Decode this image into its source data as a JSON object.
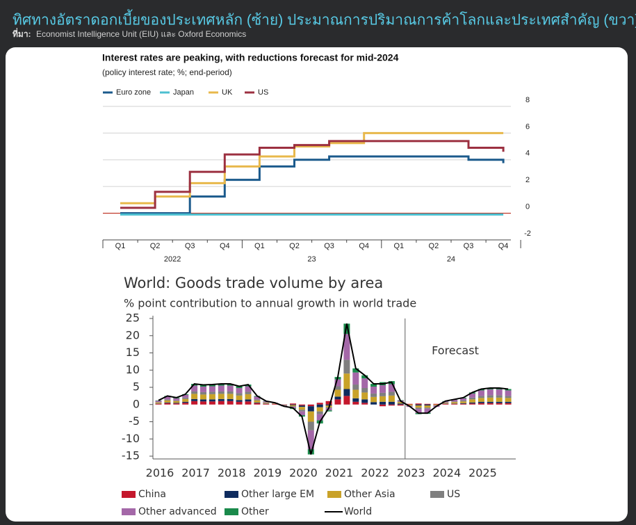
{
  "header": {
    "title": "ทิศทางอัตราดอกเบี้ยของประเทศหลัก (ซ้าย) ประมาณการปริมาณการค้าโลกและประเทศสำคัญ (ขวา)",
    "source_label": "ที่มา:",
    "source": "Economist Intelligence Unit (EIU) และ Oxford Economics"
  },
  "chart_data": [
    {
      "type": "step",
      "title": "Interest rates are peaking, with reductions forecast for mid-2024",
      "subtitle": "(policy interest rate; %; end-period)",
      "categories": [
        "Q1",
        "Q2",
        "Q3",
        "Q4",
        "Q1",
        "Q2",
        "Q3",
        "Q4",
        "Q1",
        "Q2",
        "Q3",
        "Q4"
      ],
      "groups": [
        "2022",
        "23",
        "24"
      ],
      "ylim": [
        -2,
        8
      ],
      "yticks": [
        8,
        6,
        4,
        2,
        0,
        -2
      ],
      "grid": true,
      "series": [
        {
          "name": "Euro zone",
          "color": "#1b5a8c",
          "values": [
            0,
            0,
            1.25,
            2.5,
            3.5,
            4.0,
            4.25,
            4.25,
            4.25,
            4.25,
            4.0,
            3.75
          ]
        },
        {
          "name": "Japan",
          "color": "#4dbfd0",
          "values": [
            -0.1,
            -0.1,
            -0.1,
            -0.1,
            -0.1,
            -0.1,
            -0.1,
            -0.1,
            -0.1,
            -0.1,
            -0.1,
            -0.1
          ]
        },
        {
          "name": "UK",
          "color": "#e8b84b",
          "values": [
            0.75,
            1.25,
            2.25,
            3.5,
            4.25,
            5.0,
            5.25,
            6.0,
            6.0,
            6.0,
            6.0,
            6.0
          ]
        },
        {
          "name": "US",
          "color": "#9c3040",
          "values": [
            0.4,
            1.6,
            3.1,
            4.4,
            4.9,
            5.1,
            5.4,
            5.4,
            5.4,
            5.4,
            4.9,
            4.6
          ]
        }
      ]
    },
    {
      "type": "stacked-bar",
      "title": "World: Goods trade volume by area",
      "subtitle": "% point contribution to annual growth in world trade",
      "categories": [
        "2016",
        null,
        null,
        null,
        "2017",
        null,
        null,
        null,
        "2018",
        null,
        null,
        null,
        "2019",
        null,
        null,
        null,
        "2020",
        null,
        null,
        null,
        "2021",
        null,
        null,
        null,
        "2022",
        null,
        null,
        null,
        "2023",
        null,
        null,
        null,
        "2024",
        null,
        null,
        null,
        "2025",
        null,
        null,
        null
      ],
      "ylim": [
        -15,
        25
      ],
      "yticks": [
        25,
        20,
        15,
        10,
        5,
        0,
        -5,
        -10,
        -15
      ],
      "annotations": [
        {
          "text": "Forecast"
        }
      ],
      "series": [
        {
          "name": "China",
          "color": "#c4172c",
          "values": [
            0.2,
            0.4,
            0.3,
            0.5,
            1.0,
            0.9,
            0.9,
            1.0,
            1.0,
            0.8,
            0.9,
            0.4,
            0.2,
            0.2,
            -0.1,
            0.3,
            -0.3,
            -0.5,
            0.5,
            1.0,
            1.5,
            2.5,
            0.8,
            0.5,
            0.0,
            -0.5,
            -0.3,
            -0.3,
            0.2,
            0.3,
            0.2,
            0.2,
            0.2,
            0.2,
            0.2,
            0.3,
            0.4,
            0.4,
            0.4,
            0.4
          ]
        },
        {
          "name": "Other large EM",
          "color": "#0e2b5e",
          "values": [
            0.1,
            0.2,
            0.2,
            0.3,
            0.6,
            0.6,
            0.6,
            0.6,
            0.6,
            0.5,
            0.6,
            0.2,
            0.1,
            0.0,
            -0.1,
            -0.2,
            -0.4,
            -1.5,
            -0.8,
            -0.3,
            0.8,
            2.0,
            1.0,
            1.0,
            0.7,
            0.8,
            0.8,
            0.3,
            0.0,
            -0.3,
            -0.3,
            0.0,
            0.1,
            0.1,
            0.2,
            0.3,
            0.4,
            0.4,
            0.4,
            0.4
          ]
        },
        {
          "name": "Other Asia",
          "color": "#c9a229",
          "values": [
            0.3,
            0.6,
            0.5,
            0.8,
            1.5,
            1.4,
            1.5,
            1.5,
            1.5,
            1.3,
            1.5,
            0.6,
            0.2,
            0.1,
            -0.1,
            -0.3,
            -0.8,
            -3.0,
            -1.2,
            -0.5,
            2.0,
            4.5,
            2.5,
            2.0,
            1.5,
            1.6,
            1.8,
            0.4,
            -0.3,
            -0.6,
            -0.6,
            -0.2,
            0.2,
            0.4,
            0.5,
            0.9,
            1.1,
            1.2,
            1.2,
            1.1
          ]
        },
        {
          "name": "US",
          "color": "#7f7f7f",
          "values": [
            0.1,
            0.3,
            0.2,
            0.4,
            0.7,
            0.7,
            0.7,
            0.7,
            0.7,
            0.7,
            0.7,
            0.3,
            0.1,
            0.1,
            0.0,
            -0.2,
            -0.5,
            -2.5,
            -0.8,
            -0.3,
            1.0,
            4.0,
            1.5,
            1.3,
            1.0,
            1.0,
            1.1,
            0.2,
            -0.1,
            -0.4,
            -0.3,
            -0.1,
            0.1,
            0.2,
            0.3,
            0.5,
            0.6,
            0.7,
            0.7,
            0.6
          ]
        },
        {
          "name": "Other advanced",
          "color": "#a468a8",
          "values": [
            0.4,
            0.8,
            0.6,
            0.8,
            1.7,
            1.6,
            1.6,
            1.7,
            1.7,
            1.5,
            1.6,
            0.8,
            0.3,
            0.1,
            -0.2,
            -0.4,
            -1.1,
            -5.5,
            -1.8,
            -0.6,
            2.0,
            7.5,
            3.5,
            2.8,
            2.0,
            2.2,
            2.2,
            0.3,
            -0.3,
            -1.2,
            -1.2,
            -0.4,
            0.3,
            0.5,
            0.6,
            1.2,
            1.6,
            1.7,
            1.7,
            1.6
          ]
        },
        {
          "name": "Other",
          "color": "#1a8a4b",
          "values": [
            0.1,
            0.2,
            0.2,
            0.2,
            0.5,
            0.5,
            0.5,
            0.5,
            0.5,
            0.5,
            0.5,
            0.2,
            0.1,
            0.0,
            0.0,
            -0.2,
            -0.4,
            -1.5,
            -0.9,
            -0.3,
            0.7,
            3.0,
            1.2,
            0.9,
            0.8,
            0.9,
            0.9,
            0.1,
            0.0,
            -0.3,
            -0.3,
            0.0,
            0.1,
            0.1,
            0.2,
            0.3,
            0.4,
            0.4,
            0.4,
            0.4
          ]
        },
        {
          "name": "World",
          "color": "#000000",
          "kind": "line",
          "values": [
            1.2,
            2.5,
            2.0,
            3.0,
            6.0,
            5.7,
            5.8,
            6.0,
            6.0,
            5.3,
            5.8,
            2.5,
            1.0,
            0.5,
            -0.5,
            -1.0,
            -3.5,
            -14.5,
            -5.0,
            -1.0,
            8.0,
            23.5,
            10.5,
            8.5,
            6.0,
            6.0,
            6.5,
            1.0,
            -0.5,
            -2.5,
            -2.5,
            -0.5,
            1.0,
            1.5,
            2.0,
            3.5,
            4.5,
            4.8,
            4.8,
            4.5
          ]
        }
      ]
    }
  ]
}
